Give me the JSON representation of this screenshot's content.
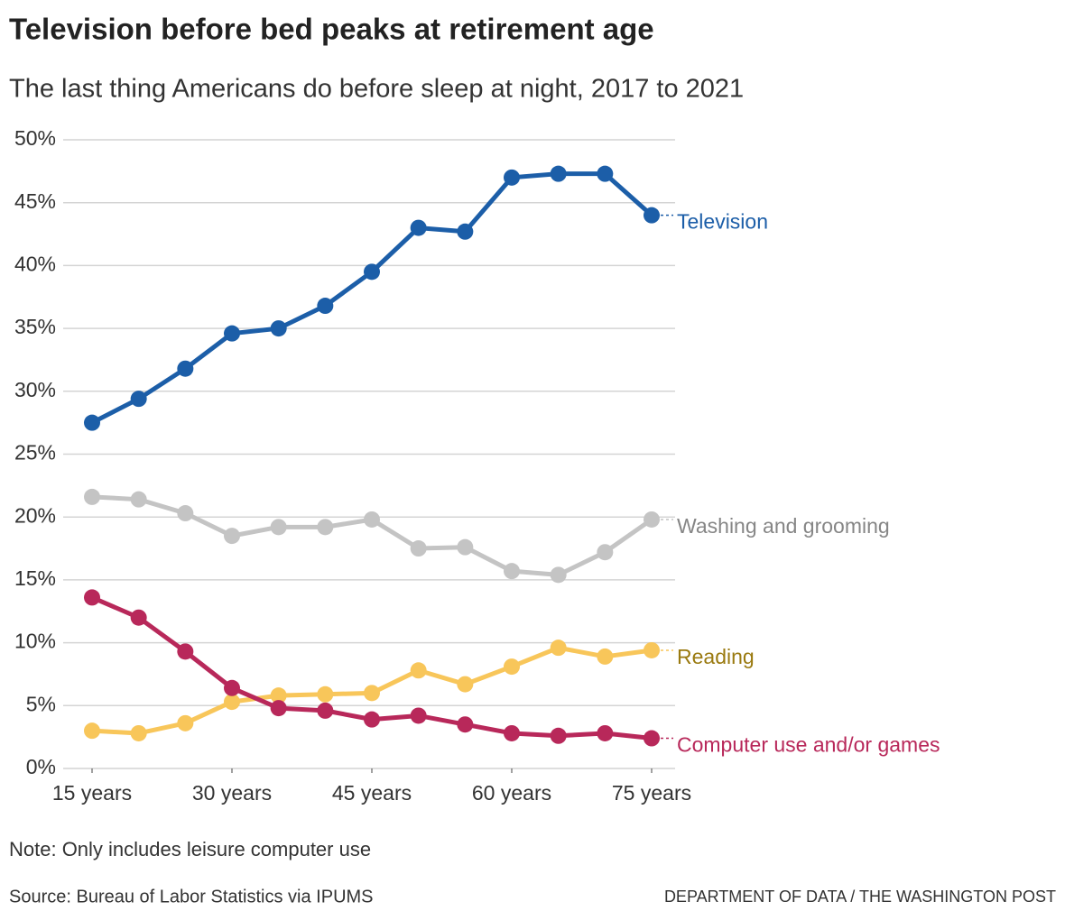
{
  "chart_data": {
    "type": "line",
    "title": "Television before bed peaks at retirement age",
    "subtitle": "The last thing Americans do before sleep at night, 2017 to 2021",
    "note": "Note: Only includes leisure computer use",
    "source": "Source: Bureau of Labor Statistics via IPUMS",
    "credit": "DEPARTMENT OF DATA / THE WASHINGTON POST",
    "x": [
      15,
      20,
      25,
      30,
      35,
      40,
      45,
      50,
      55,
      60,
      65,
      70,
      75
    ],
    "xlim": [
      15,
      75
    ],
    "xticks": [
      {
        "value": 15,
        "label": "15 years"
      },
      {
        "value": 30,
        "label": "30 years"
      },
      {
        "value": 45,
        "label": "45 years"
      },
      {
        "value": 60,
        "label": "60 years"
      },
      {
        "value": 75,
        "label": "75 years"
      }
    ],
    "ylim": [
      0,
      50
    ],
    "yticks": [
      {
        "value": 0,
        "label": "0%"
      },
      {
        "value": 5,
        "label": "5%"
      },
      {
        "value": 10,
        "label": "10%"
      },
      {
        "value": 15,
        "label": "15%"
      },
      {
        "value": 20,
        "label": "20%"
      },
      {
        "value": 25,
        "label": "25%"
      },
      {
        "value": 30,
        "label": "30%"
      },
      {
        "value": 35,
        "label": "35%"
      },
      {
        "value": 40,
        "label": "40%"
      },
      {
        "value": 45,
        "label": "45%"
      },
      {
        "value": 50,
        "label": "50%"
      }
    ],
    "grid": true,
    "series": [
      {
        "name": "Washing and grooming",
        "color": "#c4c4c4",
        "label_color": "#868686",
        "values": [
          21.6,
          21.4,
          20.3,
          18.5,
          19.2,
          19.2,
          19.8,
          17.5,
          17.6,
          15.7,
          15.4,
          17.2,
          19.8
        ]
      },
      {
        "name": "Reading",
        "color": "#f8c65a",
        "label_color": "#9a7a10",
        "values": [
          3.0,
          2.8,
          3.6,
          5.3,
          5.8,
          5.9,
          6.0,
          7.8,
          6.7,
          8.1,
          9.6,
          8.9,
          9.4
        ]
      },
      {
        "name": "Computer use and/or games",
        "color": "#b8285a",
        "label_color": "#b8285a",
        "values": [
          13.6,
          12.0,
          9.3,
          6.4,
          4.8,
          4.6,
          3.9,
          4.2,
          3.5,
          2.8,
          2.6,
          2.8,
          2.4
        ]
      },
      {
        "name": "Television",
        "color": "#1c5ea8",
        "label_color": "#1c5ea8",
        "values": [
          27.5,
          29.4,
          31.8,
          34.6,
          35.0,
          36.8,
          39.5,
          43.0,
          42.7,
          47.0,
          47.3,
          47.3,
          44.0
        ]
      }
    ]
  }
}
